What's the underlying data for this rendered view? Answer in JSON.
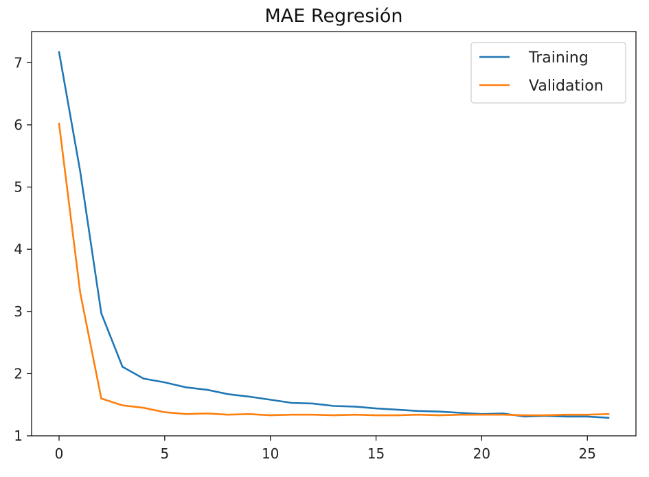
{
  "chart_data": {
    "type": "line",
    "title": "MAE Regresión",
    "xlabel": "",
    "ylabel": "",
    "xlim": [
      -1.3,
      27.3
    ],
    "ylim": [
      1.0,
      7.5
    ],
    "xticks": [
      0,
      5,
      10,
      15,
      20,
      25
    ],
    "yticks": [
      1,
      2,
      3,
      4,
      5,
      6,
      7
    ],
    "grid": false,
    "legend_position": "top-right",
    "x": [
      0,
      1,
      2,
      3,
      4,
      5,
      6,
      7,
      8,
      9,
      10,
      11,
      12,
      13,
      14,
      15,
      16,
      17,
      18,
      19,
      20,
      21,
      22,
      23,
      24,
      25,
      26
    ],
    "series": [
      {
        "name": "Training",
        "color": "#1f77b4",
        "values": [
          7.17,
          5.25,
          2.97,
          2.11,
          1.92,
          1.86,
          1.78,
          1.74,
          1.67,
          1.63,
          1.58,
          1.53,
          1.52,
          1.48,
          1.47,
          1.44,
          1.42,
          1.4,
          1.39,
          1.37,
          1.35,
          1.36,
          1.31,
          1.32,
          1.31,
          1.31,
          1.29
        ]
      },
      {
        "name": "Validation",
        "color": "#ff7f0e",
        "values": [
          6.02,
          3.3,
          1.6,
          1.49,
          1.45,
          1.38,
          1.35,
          1.36,
          1.34,
          1.35,
          1.33,
          1.34,
          1.34,
          1.33,
          1.34,
          1.33,
          1.33,
          1.34,
          1.33,
          1.34,
          1.34,
          1.34,
          1.33,
          1.33,
          1.34,
          1.34,
          1.35
        ]
      }
    ]
  }
}
